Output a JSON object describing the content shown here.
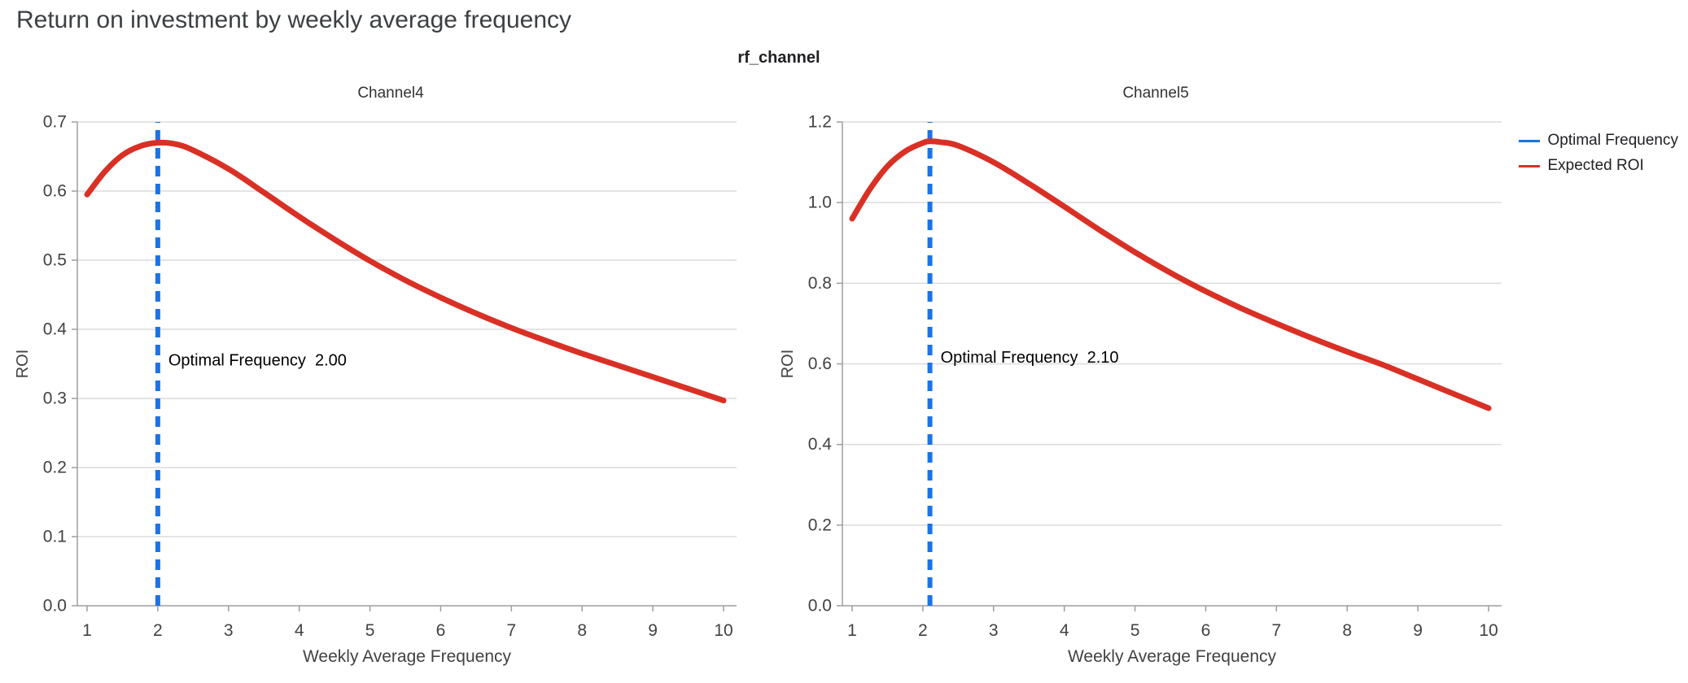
{
  "page": {
    "title": "Return on investment by weekly average frequency"
  },
  "facet_title": "rf_channel",
  "legend": {
    "items": [
      {
        "label": "Optimal Frequency",
        "color": "#1a73e8",
        "icon": "optimal-frequency-line-swatch"
      },
      {
        "label": "Expected ROI",
        "color": "#d93025",
        "icon": "expected-roi-line-swatch"
      }
    ]
  },
  "chart_data": [
    {
      "type": "line",
      "title": "Channel4",
      "xlabel": "Weekly Average Frequency",
      "ylabel": "ROI",
      "xlim": [
        1,
        10
      ],
      "ylim": [
        0.0,
        0.7
      ],
      "xticks": [
        1,
        2,
        3,
        4,
        5,
        6,
        7,
        8,
        9,
        10
      ],
      "yticks": [
        0.0,
        0.1,
        0.2,
        0.3,
        0.4,
        0.5,
        0.6,
        0.7
      ],
      "ytick_decimals": 1,
      "grid": "horizontal",
      "vline": {
        "name": "Optimal Frequency",
        "x": 2.0,
        "color": "#1a73e8",
        "style": "dashed"
      },
      "annotation": {
        "label": "Optimal Frequency",
        "value": "2.00",
        "y": 0.355
      },
      "series": [
        {
          "name": "Expected ROI",
          "color": "#d93025",
          "x": [
            1,
            1.25,
            1.5,
            1.75,
            2,
            2.25,
            2.5,
            3,
            3.5,
            4,
            4.5,
            5,
            5.5,
            6,
            6.5,
            7,
            7.5,
            8,
            8.5,
            9,
            9.5,
            10
          ],
          "y": [
            0.595,
            0.628,
            0.652,
            0.665,
            0.67,
            0.668,
            0.659,
            0.632,
            0.598,
            0.563,
            0.53,
            0.499,
            0.471,
            0.446,
            0.423,
            0.402,
            0.383,
            0.365,
            0.348,
            0.331,
            0.314,
            0.297
          ]
        }
      ]
    },
    {
      "type": "line",
      "title": "Channel5",
      "xlabel": "Weekly Average Frequency",
      "ylabel": "ROI",
      "xlim": [
        1,
        10
      ],
      "ylim": [
        0.0,
        1.2
      ],
      "xticks": [
        1,
        2,
        3,
        4,
        5,
        6,
        7,
        8,
        9,
        10
      ],
      "yticks": [
        0.0,
        0.2,
        0.4,
        0.6,
        0.8,
        1.0,
        1.2
      ],
      "ytick_decimals": 1,
      "grid": "horizontal",
      "vline": {
        "name": "Optimal Frequency",
        "x": 2.1,
        "color": "#1a73e8",
        "style": "dashed"
      },
      "annotation": {
        "label": "Optimal Frequency",
        "value": "2.10",
        "y": 0.615
      },
      "series": [
        {
          "name": "Expected ROI",
          "color": "#d93025",
          "x": [
            1,
            1.25,
            1.5,
            1.75,
            2,
            2.1,
            2.25,
            2.5,
            3,
            3.5,
            4,
            4.5,
            5,
            5.5,
            6,
            6.5,
            7,
            7.5,
            8,
            8.5,
            9,
            9.5,
            10
          ],
          "y": [
            0.96,
            1.033,
            1.09,
            1.127,
            1.148,
            1.152,
            1.15,
            1.141,
            1.1,
            1.047,
            0.99,
            0.932,
            0.877,
            0.826,
            0.78,
            0.738,
            0.7,
            0.664,
            0.63,
            0.598,
            0.562,
            0.526,
            0.49
          ]
        }
      ]
    }
  ],
  "style": {
    "grid_color": "#dcdcdc",
    "axis_color": "#9e9e9e",
    "tick_label_color": "#424242",
    "axis_title_color": "#424242",
    "annotation_color": "#000000"
  }
}
